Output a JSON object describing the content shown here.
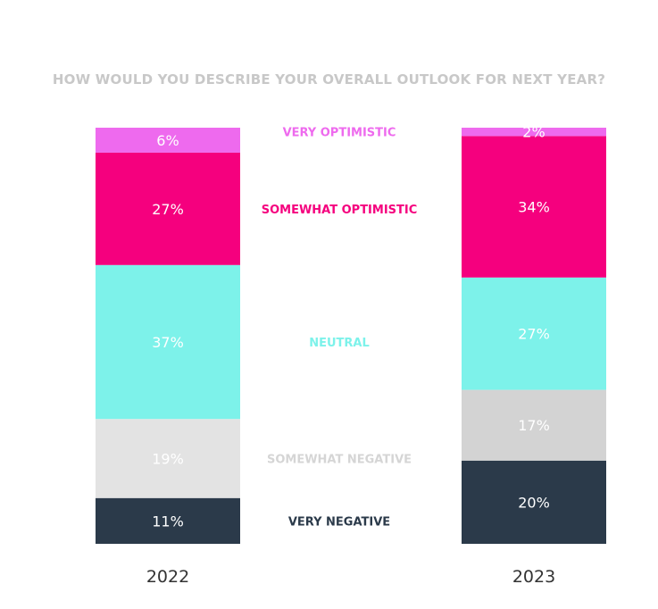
{
  "chart_data": {
    "type": "bar",
    "stacked": true,
    "percent": true,
    "title": "HOW WOULD YOU DESCRIBE YOUR OVERALL OUTLOOK FOR NEXT YEAR?",
    "categories": [
      "2022",
      "2023"
    ],
    "series": [
      {
        "name": "VERY NEGATIVE",
        "values": [
          11,
          20
        ],
        "labels": [
          "11%",
          "20%"
        ],
        "color": "#2b3a4a",
        "text_color": "#ffffff",
        "name_color": "#2b3a4a"
      },
      {
        "name": "SOMEWHAT NEGATIVE",
        "values": [
          19,
          17
        ],
        "labels": [
          "19%",
          "17%"
        ],
        "color_by_category": [
          "#e3e3e3",
          "#d3d3d3"
        ],
        "text_color": "#ffffff",
        "name_color": "#d5d5d5"
      },
      {
        "name": "NEUTRAL",
        "values": [
          37,
          27
        ],
        "labels": [
          "37%",
          "27%"
        ],
        "color": "#7df2ea",
        "text_color": "#ffffff",
        "name_color": "#7df2ea"
      },
      {
        "name": "SOMEWHAT OPTIMISTIC",
        "values": [
          27,
          34
        ],
        "labels": [
          "27%",
          "34%"
        ],
        "color": "#f5007e",
        "text_color": "#ffffff",
        "name_color": "#f5007e"
      },
      {
        "name": "VERY OPTIMISTIC",
        "values": [
          6,
          2
        ],
        "labels": [
          "6%",
          "2%"
        ],
        "color": "#ee6aee",
        "text_color": "#ffffff",
        "name_color": "#ee6aee"
      }
    ],
    "ylim": [
      0,
      100
    ],
    "legend": "center-between-bars",
    "grid": false
  }
}
